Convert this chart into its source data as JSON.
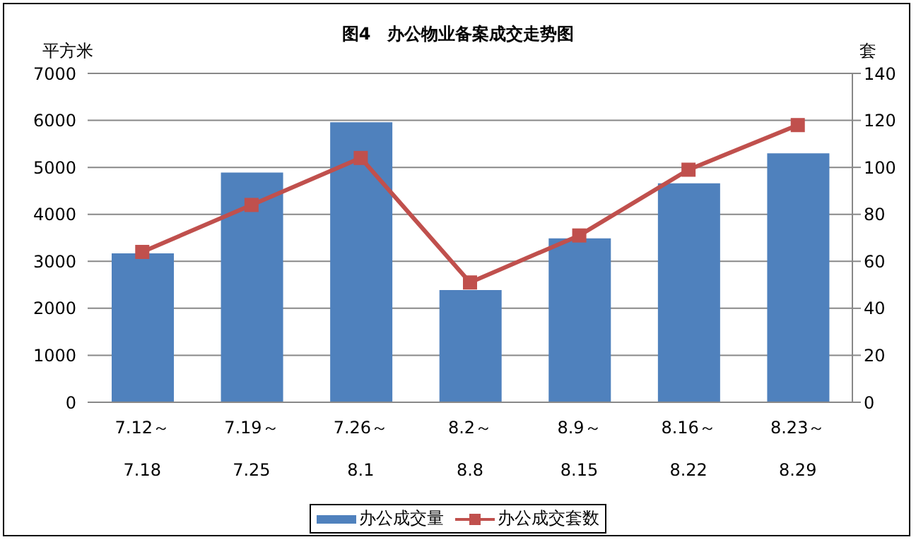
{
  "chart_data": {
    "type": "bar",
    "title": "图4　办公物业备案成交走势图",
    "ylabel": "平方米",
    "y2label": "套",
    "categories": [
      "7.12～\n7.18",
      "7.19～\n7.25",
      "7.26～\n8.1",
      "8.2～\n8.8",
      "8.9～\n8.15",
      "8.16～\n8.22",
      "8.23～\n8.29"
    ],
    "series": [
      {
        "name": "办公成交量",
        "color": "#4f81bd",
        "values": [
          3170,
          4890,
          5960,
          2390,
          3490,
          4660,
          5300
        ]
      },
      {
        "name": "办公成交套数",
        "type": "line",
        "axis": "y2",
        "color": "#c0504d",
        "marker": "square",
        "values": [
          64,
          84,
          104,
          51,
          71,
          99,
          118
        ]
      }
    ],
    "ylim": [
      0,
      7000
    ],
    "yticks": [
      0,
      1000,
      2000,
      3000,
      4000,
      5000,
      6000,
      7000
    ],
    "y2lim": [
      0,
      140
    ],
    "y2ticks": [
      0,
      20,
      40,
      60,
      80,
      100,
      120,
      140
    ],
    "grid": "y",
    "legend": "bottom"
  }
}
